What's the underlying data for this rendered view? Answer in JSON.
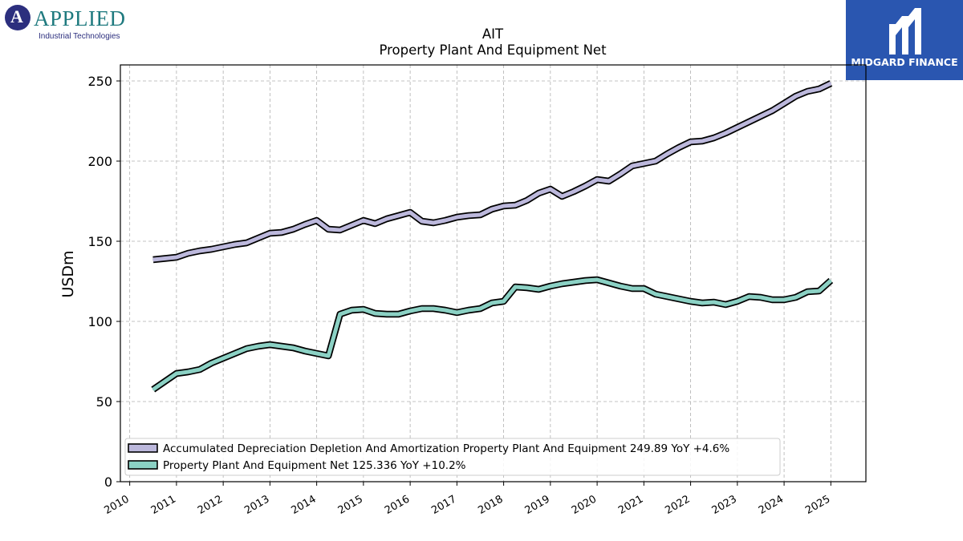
{
  "branding": {
    "left_logo_word": "APPLIED",
    "left_logo_sub": "Industrial Technologies",
    "left_logo_mark": "A",
    "right_logo_name": "MIDGARD FINANCE",
    "right_logo_bg": "#2a56b0"
  },
  "chart_data": {
    "type": "line",
    "title": "AIT",
    "subtitle": "Property Plant And Equipment Net",
    "xlabel": "",
    "ylabel": "USDm",
    "ylim": [
      0,
      260
    ],
    "xlim": [
      2009.8,
      2025.75
    ],
    "grid": true,
    "legend_position": "lower-left",
    "yticks": [
      0,
      50,
      100,
      150,
      200,
      250
    ],
    "xticks": [
      "2010",
      "2011",
      "2012",
      "2013",
      "2014",
      "2015",
      "2016",
      "2017",
      "2018",
      "2019",
      "2020",
      "2021",
      "2022",
      "2023",
      "2024",
      "2025"
    ],
    "series": [
      {
        "name": "Accumulated Depreciation Depletion And Amortization Property Plant And Equipment",
        "legend_label": "Accumulated Depreciation Depletion And Amortization Property Plant And Equipment  249.89 YoY +4.6%",
        "color": "#bcb8dc",
        "x": [
          2010.5,
          2011.0,
          2011.25,
          2011.5,
          2011.75,
          2012.0,
          2012.25,
          2012.5,
          2012.75,
          2013.0,
          2013.25,
          2013.5,
          2013.75,
          2014.0,
          2014.25,
          2014.5,
          2014.75,
          2015.0,
          2015.25,
          2015.5,
          2015.75,
          2016.0,
          2016.25,
          2016.5,
          2016.75,
          2017.0,
          2017.25,
          2017.5,
          2017.75,
          2018.0,
          2018.25,
          2018.5,
          2018.75,
          2019.0,
          2019.25,
          2019.5,
          2019.75,
          2020.0,
          2020.25,
          2020.5,
          2020.75,
          2021.0,
          2021.25,
          2021.5,
          2021.75,
          2022.0,
          2022.25,
          2022.5,
          2022.75,
          2023.0,
          2023.25,
          2023.5,
          2023.75,
          2024.0,
          2024.25,
          2024.5,
          2024.75,
          2025.0
        ],
        "values": [
          138.5,
          140,
          142.5,
          144,
          145,
          146.5,
          148,
          149,
          152,
          155,
          155.5,
          157.5,
          160.5,
          163,
          157.5,
          157,
          160,
          163,
          161,
          164,
          166,
          168,
          162.5,
          161.5,
          163,
          165,
          166,
          166.5,
          170,
          172,
          172.5,
          175.5,
          180,
          182.5,
          178,
          181,
          184.5,
          188.5,
          187.5,
          192,
          197,
          198.5,
          200,
          204.5,
          208.5,
          212,
          212.5,
          214.5,
          217.5,
          221,
          224.5,
          228,
          231.5,
          236,
          240.5,
          243.5,
          245,
          248.5
        ]
      },
      {
        "name": "Property Plant And Equipment Net",
        "legend_label": "Property Plant And Equipment Net  125.336 YoY +10.2%",
        "color": "#8bd1c4",
        "x": [
          2010.5,
          2011.0,
          2011.25,
          2011.5,
          2011.75,
          2012.0,
          2012.25,
          2012.5,
          2012.75,
          2013.0,
          2013.25,
          2013.5,
          2013.75,
          2014.0,
          2014.25,
          2014.5,
          2014.75,
          2015.0,
          2015.25,
          2015.5,
          2015.75,
          2016.0,
          2016.25,
          2016.5,
          2016.75,
          2017.0,
          2017.25,
          2017.5,
          2017.75,
          2018.0,
          2018.25,
          2018.5,
          2018.75,
          2019.0,
          2019.25,
          2019.5,
          2019.75,
          2020.0,
          2020.25,
          2020.5,
          2020.75,
          2021.0,
          2021.25,
          2021.5,
          2021.75,
          2022.0,
          2022.25,
          2022.5,
          2022.75,
          2023.0,
          2023.25,
          2023.5,
          2023.75,
          2024.0,
          2024.25,
          2024.5,
          2024.75,
          2025.0
        ],
        "values": [
          57.5,
          67.5,
          68.5,
          70,
          74,
          77,
          80,
          83,
          84.5,
          85.5,
          84.5,
          83.5,
          81.5,
          80,
          78.5,
          104.5,
          107,
          107.5,
          105,
          104.5,
          104.5,
          106.5,
          108,
          108,
          107,
          105.5,
          107,
          108,
          111.5,
          112.5,
          121.5,
          121,
          120,
          122,
          123.5,
          124.5,
          125.5,
          126,
          124,
          122,
          120.5,
          120.5,
          117,
          115.5,
          114,
          112.5,
          111.5,
          112,
          110.5,
          112.5,
          115.5,
          115,
          113.5,
          113.5,
          115,
          118.5,
          119,
          125.5
        ]
      }
    ]
  }
}
